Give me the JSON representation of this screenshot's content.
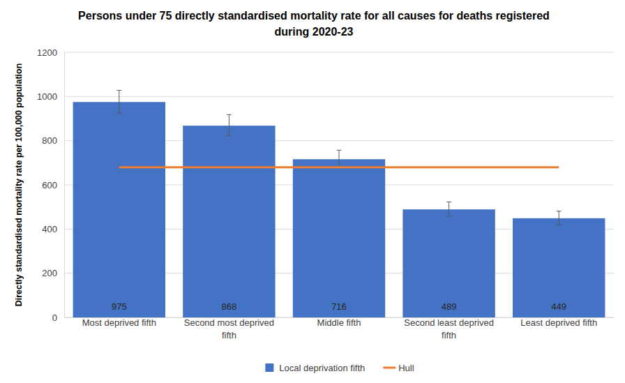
{
  "chart_data": {
    "type": "bar",
    "title": "Persons under 75 directly standardised mortality rate for all causes for deaths registered during 2020-23",
    "y_label": "Directly standardised mortality rate per 100,000 population",
    "categories": [
      "Most deprived fifth",
      "Second most deprived fifth",
      "Middle fifth",
      "Second least deprived fifth",
      "Least deprived fifth"
    ],
    "series": [
      {
        "name": "Local deprivation fifth",
        "type": "bar",
        "color": "#4472c4",
        "values": [
          975,
          868,
          716,
          489,
          449
        ],
        "errors_minus": [
          50,
          46,
          37,
          31,
          30
        ],
        "errors_plus": [
          53,
          50,
          41,
          34,
          32
        ]
      },
      {
        "name": "Hull",
        "type": "line",
        "color": "#ed7d31",
        "values": [
          680,
          680,
          680,
          680,
          680
        ]
      }
    ],
    "ylim": [
      0,
      1200
    ],
    "yticks": [
      0,
      200,
      400,
      600,
      800,
      1000,
      1200
    ],
    "grid": true,
    "data_labels": true,
    "legend": "bottom"
  }
}
